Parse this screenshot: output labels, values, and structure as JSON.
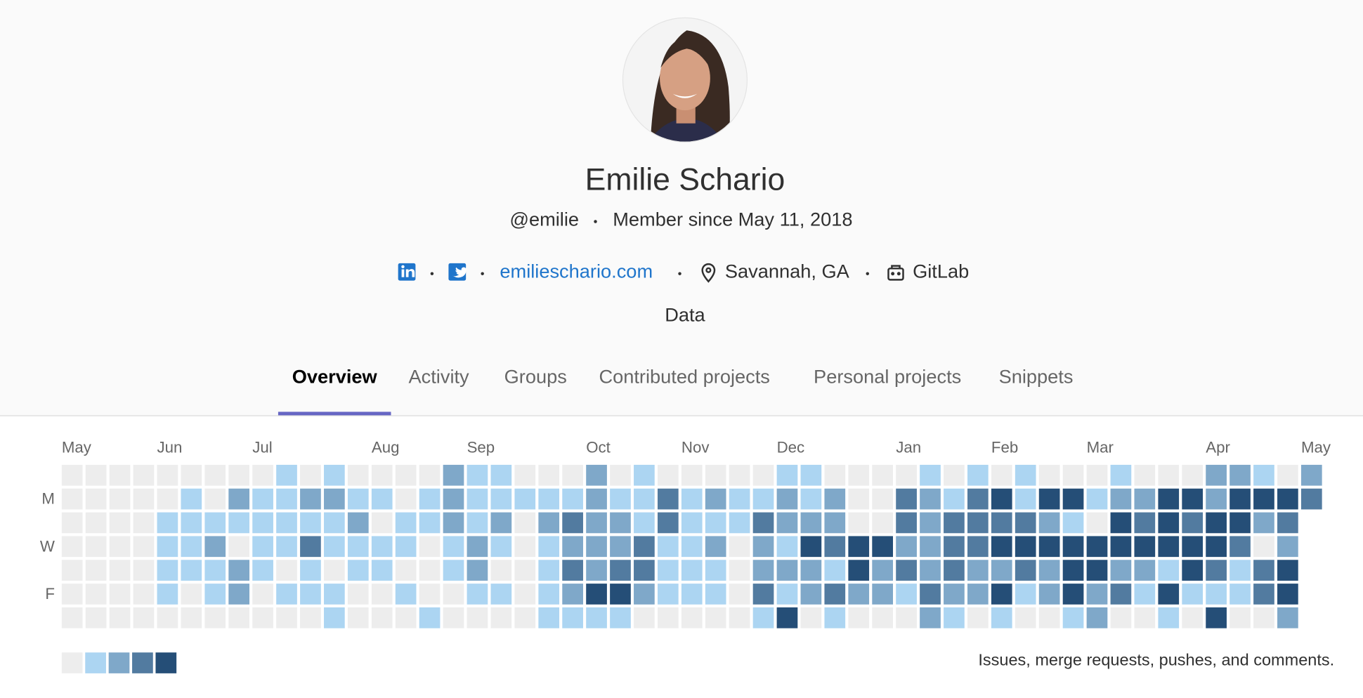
{
  "profile": {
    "name": "Emilie Schario",
    "username": "@emilie",
    "member_since": "Member since May 11, 2018",
    "website": "emilieschario.com",
    "location": "Savannah, GA",
    "organization": "GitLab",
    "job_title": "Data"
  },
  "tabs": [
    "Overview",
    "Activity",
    "Groups",
    "Contributed projects",
    "Personal projects",
    "Snippets"
  ],
  "active_tab": 0,
  "calendar": {
    "week_labels": [
      "May",
      null,
      null,
      null,
      "Jun",
      null,
      null,
      null,
      "Jul",
      null,
      null,
      null,
      null,
      "Aug",
      null,
      null,
      null,
      "Sep",
      null,
      null,
      null,
      null,
      "Oct",
      null,
      null,
      null,
      "Nov",
      null,
      null,
      null,
      "Dec",
      null,
      null,
      null,
      null,
      "Jan",
      null,
      null,
      null,
      "Feb",
      null,
      null,
      null,
      "Mar",
      null,
      null,
      null,
      null,
      "Apr",
      null,
      null,
      null,
      "May"
    ],
    "day_labels": [
      null,
      "M",
      null,
      "W",
      null,
      "F",
      null
    ],
    "levels": [
      [
        0,
        0,
        0,
        0,
        0,
        0,
        0,
        0,
        0,
        1,
        0,
        1,
        0,
        0,
        0,
        0,
        2,
        1,
        1,
        0,
        0,
        0,
        2,
        0,
        1,
        0,
        0,
        0,
        0,
        0,
        1,
        1,
        0,
        0,
        0,
        0,
        1,
        0,
        1,
        0,
        1,
        0,
        0,
        0,
        1,
        0,
        0,
        0,
        2,
        2,
        1,
        0,
        2
      ],
      [
        0,
        0,
        0,
        0,
        0,
        1,
        0,
        2,
        1,
        1,
        2,
        2,
        1,
        1,
        0,
        1,
        2,
        1,
        1,
        1,
        1,
        1,
        2,
        1,
        1,
        3,
        1,
        2,
        1,
        1,
        2,
        1,
        2,
        0,
        0,
        3,
        2,
        1,
        3,
        4,
        1,
        4,
        4,
        1,
        2,
        2,
        4,
        4,
        2,
        4,
        4,
        4,
        3
      ],
      [
        0,
        0,
        0,
        0,
        1,
        1,
        1,
        1,
        1,
        1,
        1,
        1,
        2,
        0,
        1,
        1,
        2,
        1,
        2,
        0,
        2,
        3,
        2,
        2,
        1,
        3,
        1,
        1,
        1,
        3,
        2,
        2,
        2,
        0,
        0,
        3,
        2,
        3,
        3,
        3,
        3,
        2,
        1,
        0,
        4,
        3,
        4,
        3,
        4,
        4,
        2,
        3,
        null
      ],
      [
        0,
        0,
        0,
        0,
        1,
        1,
        2,
        0,
        1,
        1,
        3,
        1,
        1,
        1,
        1,
        0,
        1,
        2,
        1,
        0,
        1,
        2,
        2,
        2,
        3,
        1,
        1,
        2,
        0,
        2,
        1,
        4,
        3,
        4,
        4,
        2,
        2,
        3,
        3,
        4,
        4,
        4,
        4,
        4,
        4,
        4,
        4,
        4,
        4,
        3,
        0,
        2,
        null
      ],
      [
        0,
        0,
        0,
        0,
        1,
        1,
        1,
        2,
        1,
        0,
        1,
        0,
        1,
        1,
        0,
        0,
        1,
        2,
        0,
        0,
        1,
        3,
        2,
        3,
        3,
        1,
        1,
        1,
        0,
        2,
        2,
        2,
        1,
        4,
        2,
        3,
        2,
        3,
        2,
        2,
        3,
        2,
        4,
        4,
        2,
        2,
        1,
        4,
        3,
        1,
        3,
        4,
        null
      ],
      [
        0,
        0,
        0,
        0,
        1,
        0,
        1,
        2,
        0,
        1,
        1,
        1,
        0,
        0,
        1,
        0,
        0,
        1,
        1,
        0,
        1,
        2,
        4,
        4,
        2,
        1,
        1,
        1,
        0,
        3,
        1,
        2,
        3,
        2,
        2,
        1,
        3,
        2,
        2,
        4,
        1,
        2,
        4,
        2,
        3,
        1,
        4,
        1,
        1,
        1,
        3,
        4,
        null
      ],
      [
        0,
        0,
        0,
        0,
        0,
        0,
        0,
        0,
        0,
        0,
        0,
        1,
        0,
        0,
        0,
        1,
        0,
        0,
        0,
        0,
        1,
        1,
        1,
        1,
        0,
        0,
        0,
        0,
        0,
        1,
        4,
        0,
        1,
        0,
        0,
        0,
        2,
        1,
        0,
        1,
        0,
        0,
        1,
        2,
        0,
        0,
        1,
        0,
        4,
        0,
        0,
        2,
        null
      ]
    ],
    "colors": [
      "#ededed",
      "#acd5f2",
      "#7fa8c9",
      "#527ba0",
      "#254e77"
    ],
    "legend_levels": [
      0,
      1,
      2,
      3,
      4
    ],
    "caption": "Issues, merge requests, pushes, and comments."
  }
}
